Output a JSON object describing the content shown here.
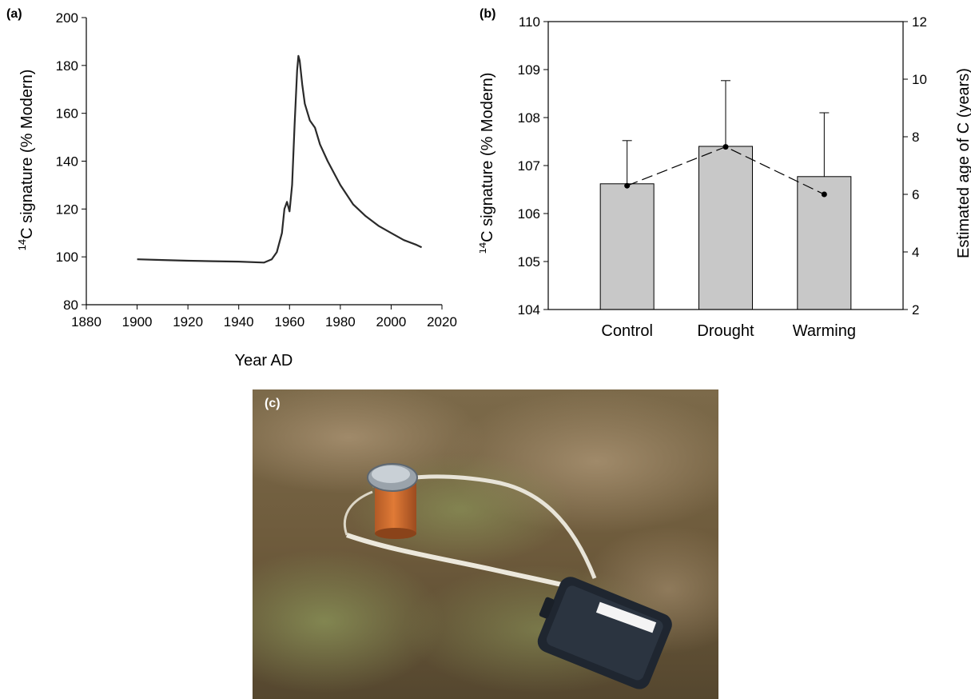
{
  "panel_a": {
    "label": "(a)"
  },
  "panel_b": {
    "label": "(b)"
  },
  "panel_c": {
    "label": "(c)"
  },
  "colors": {
    "bar_fill": "#c8c8c8",
    "line": "#2a2a2a"
  },
  "chart_data": [
    {
      "type": "line",
      "title": "",
      "xlabel": "Year AD",
      "ylabel_sup": "14",
      "ylabel": "C signature (% Modern)",
      "xlim": [
        1880,
        2020
      ],
      "ylim": [
        80,
        200
      ],
      "xticks": [
        "1880",
        "1900",
        "1920",
        "1940",
        "1960",
        "1980",
        "2000",
        "2020"
      ],
      "yticks": [
        "80",
        "100",
        "120",
        "140",
        "160",
        "180",
        "200"
      ],
      "series": [
        {
          "x": [
            1900,
            1910,
            1920,
            1930,
            1940,
            1950,
            1953,
            1955,
            1957,
            1958,
            1959,
            1960,
            1961,
            1962,
            1963,
            1963.5,
            1964,
            1965,
            1966,
            1968,
            1970,
            1972,
            1975,
            1978,
            1980,
            1985,
            1990,
            1995,
            2000,
            2005,
            2010,
            2012
          ],
          "y": [
            99,
            98.7,
            98.4,
            98.2,
            98,
            97.6,
            99,
            102,
            110,
            120,
            123,
            119,
            130,
            155,
            178,
            184,
            182,
            172,
            164,
            157,
            154,
            147,
            140,
            134,
            130,
            122,
            117,
            113,
            110,
            107,
            105,
            104
          ]
        }
      ]
    },
    {
      "type": "bar",
      "title": "",
      "categories": [
        "Control",
        "Drought",
        "Warming"
      ],
      "ylabel_sup": "14",
      "ylabel": "C signature (% Modern)",
      "ylim": [
        104,
        110
      ],
      "yticks": [
        "104",
        "105",
        "106",
        "107",
        "108",
        "109",
        "110"
      ],
      "y2label": "Estimated age of C (years)",
      "y2lim": [
        2,
        12
      ],
      "y2ticks": [
        "2",
        "4",
        "6",
        "8",
        "10",
        "12"
      ],
      "series": [
        {
          "values": [
            106.62,
            107.4,
            106.77
          ],
          "errors": [
            0.9,
            1.37,
            1.33
          ]
        },
        {
          "axis": "right",
          "values": [
            6.3,
            7.65,
            6.0
          ]
        }
      ]
    }
  ]
}
